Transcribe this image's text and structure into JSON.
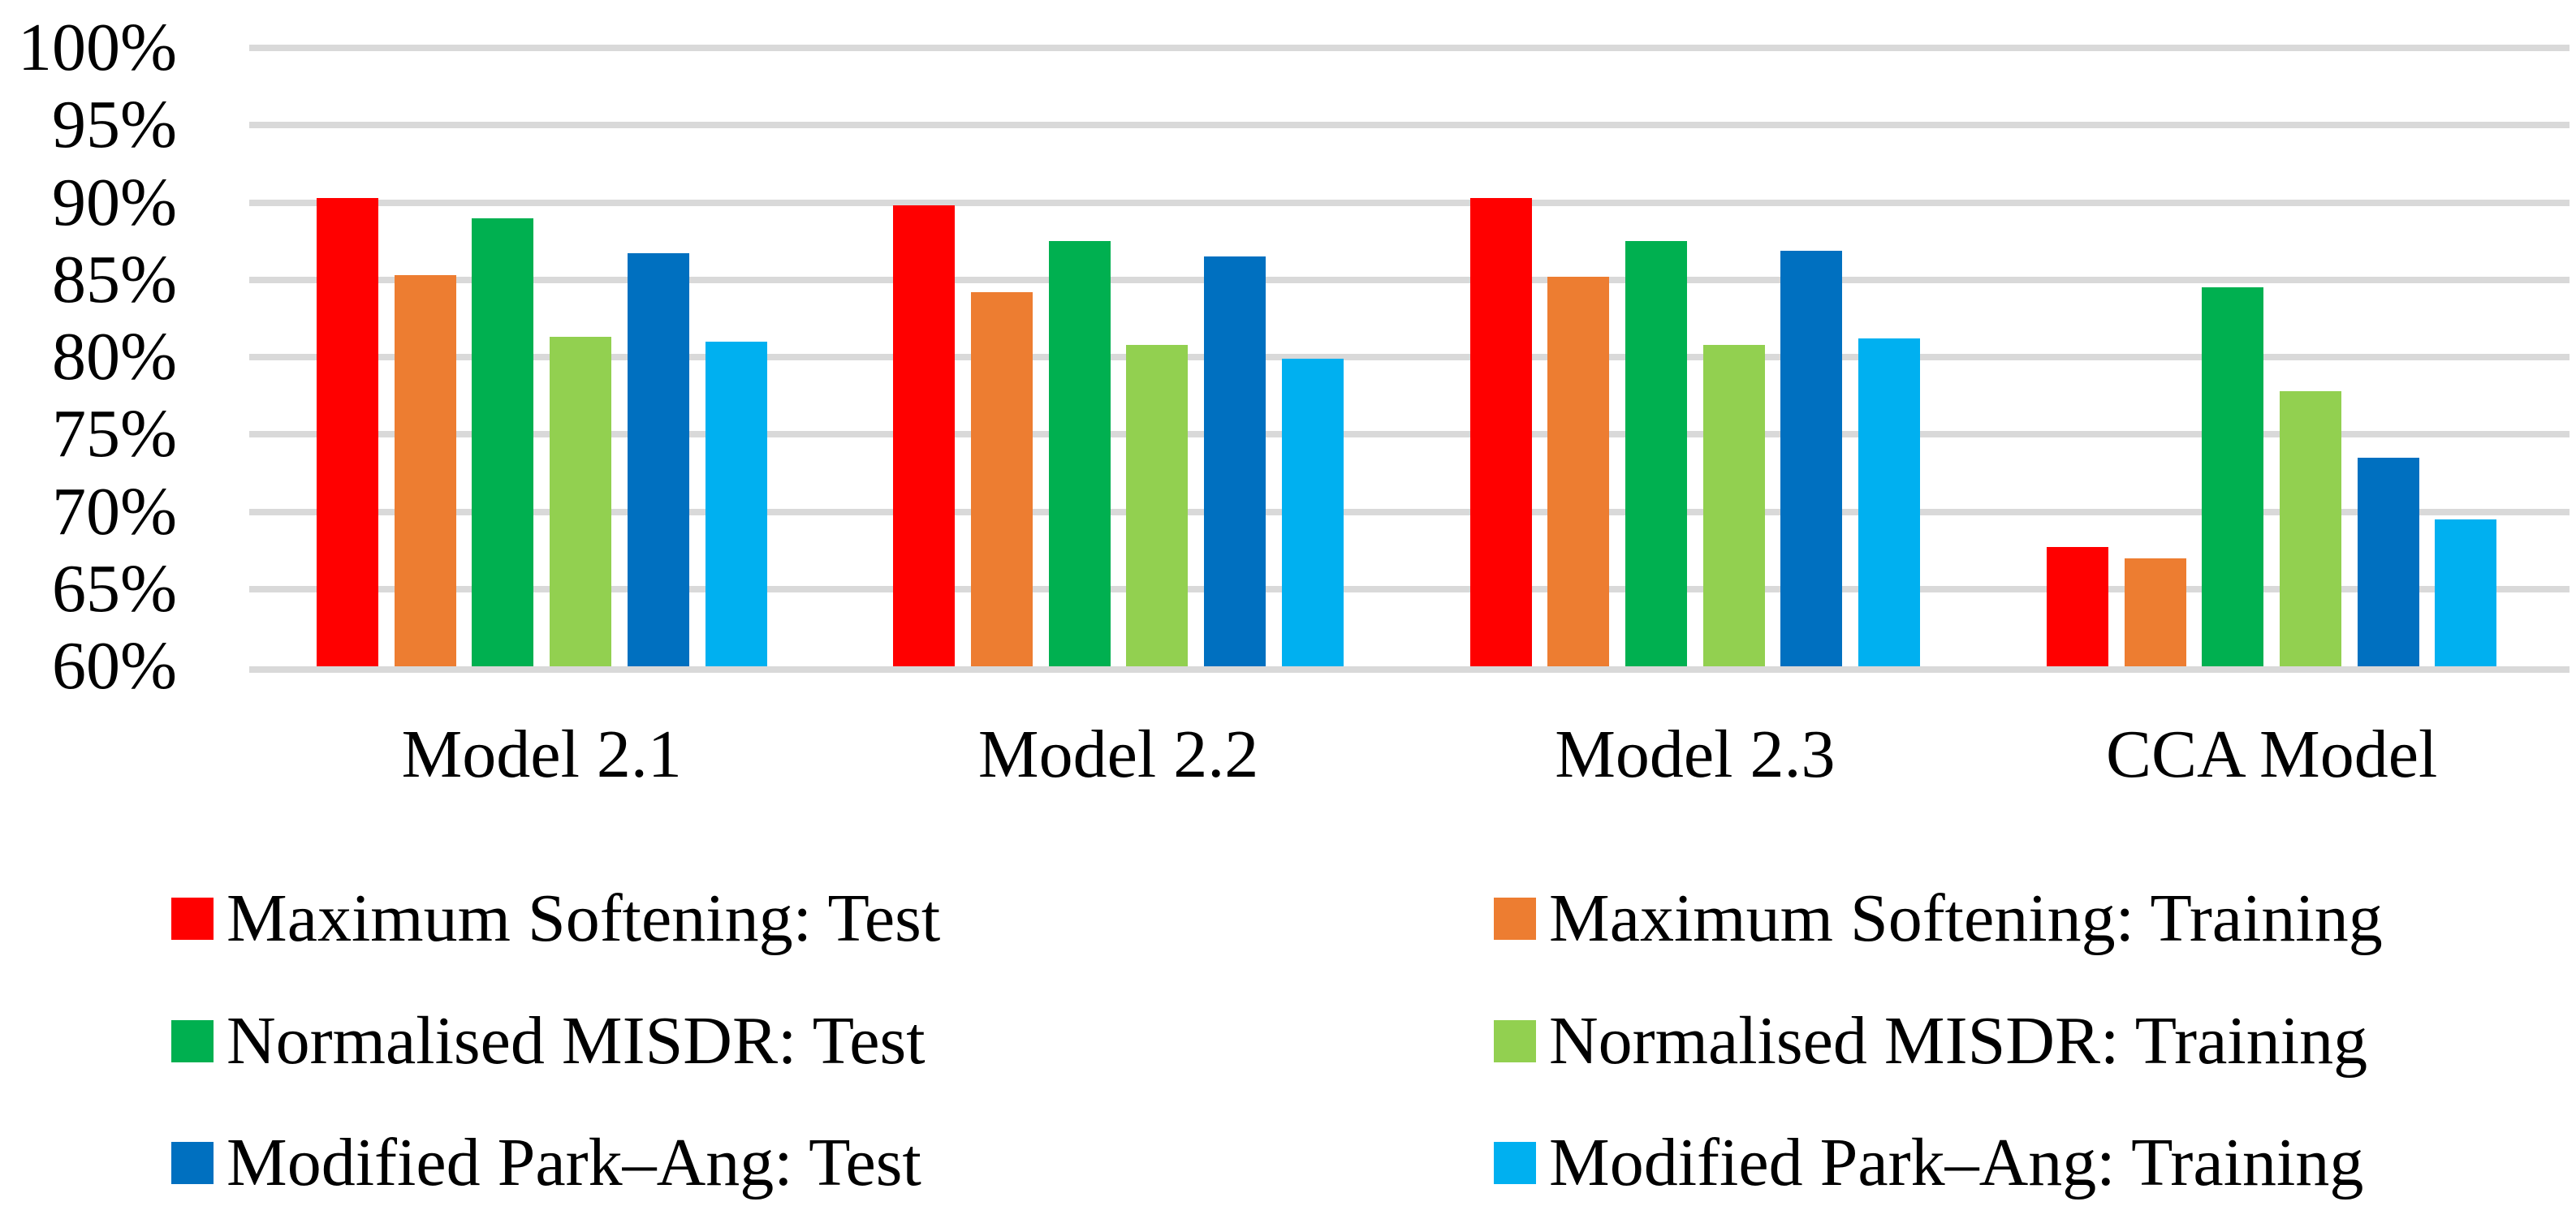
{
  "background_color": "#FFFFFF",
  "chart_data": {
    "type": "bar",
    "title": "",
    "xlabel": "",
    "ylabel": "",
    "categories": [
      "Model 2.1",
      "Model 2.2",
      "Model 2.3",
      "CCA Model"
    ],
    "series": [
      {
        "name": "Maximum Softening: Test",
        "color": "#FF0000",
        "values": [
          90.3,
          89.8,
          90.3,
          67.7
        ]
      },
      {
        "name": "Maximum Softening: Training",
        "color": "#ED7D31",
        "values": [
          85.3,
          84.2,
          85.2,
          67.0
        ]
      },
      {
        "name": "Normalised MISDR: Test",
        "color": "#00B050",
        "values": [
          89.0,
          87.5,
          87.5,
          84.5
        ]
      },
      {
        "name": "Normalised MISDR: Training",
        "color": "#92D050",
        "values": [
          81.3,
          80.8,
          80.8,
          77.8
        ]
      },
      {
        "name": "Modified Park–Ang: Test",
        "color": "#0070C0",
        "values": [
          86.7,
          86.5,
          86.9,
          73.5
        ]
      },
      {
        "name": "Modified Park–Ang: Training",
        "color": "#00B0F0",
        "values": [
          81.0,
          79.9,
          81.2,
          69.5
        ]
      }
    ],
    "ylim": [
      60,
      100
    ],
    "ytick_step": 5,
    "ytick_labels": [
      "100%",
      "95%",
      "90%",
      "85%",
      "80%",
      "75%",
      "70%",
      "65%",
      "60%"
    ],
    "grid": true,
    "gridline_color": "#D9D9D9",
    "legend_position": "bottom",
    "legend_columns": 2
  }
}
